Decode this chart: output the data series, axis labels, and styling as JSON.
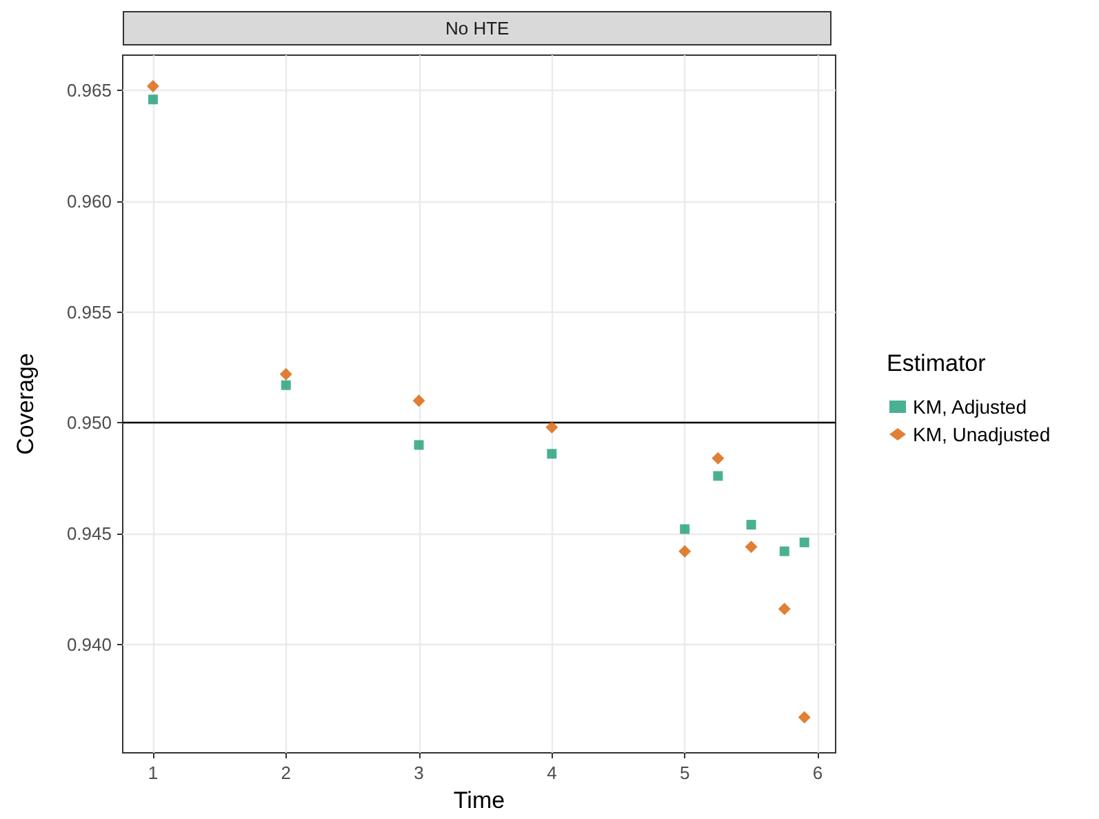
{
  "chart_data": {
    "type": "scatter",
    "title": "No HTE",
    "xlabel": "Time",
    "ylabel": "Coverage",
    "legend_title": "Estimator",
    "legend": "right",
    "grid": true,
    "xlim": [
      0.772,
      6.135
    ],
    "xticks": [
      1,
      2,
      3,
      4,
      5,
      6
    ],
    "ylim": [
      0.9351,
      0.9666
    ],
    "yticks": [
      {
        "value": 0.94,
        "label": "0.940"
      },
      0.945,
      {
        "value": 0.95,
        "label": "0.950"
      },
      0.955,
      {
        "value": 0.96,
        "label": "0.960"
      },
      0.965
    ],
    "ref_lines": [
      {
        "axis": "y",
        "value": 0.95,
        "color": "#000000"
      }
    ],
    "series": [
      {
        "name": "KM, Adjusted",
        "color": "#1b9e77",
        "marker": "square",
        "x": [
          1,
          2,
          3,
          4,
          5,
          5.25,
          5.5,
          5.75,
          5.9
        ],
        "values": [
          0.9646,
          0.9517,
          0.949,
          0.9486,
          0.9452,
          0.9476,
          0.9454,
          0.9442,
          0.9446
        ]
      },
      {
        "name": "KM, Unadjusted",
        "color": "#d95f02",
        "marker": "diamond",
        "x": [
          1,
          2,
          3,
          4,
          5,
          5.25,
          5.5,
          5.75,
          5.9
        ],
        "values": [
          0.9652,
          0.9522,
          0.951,
          0.9498,
          0.9442,
          0.9484,
          0.9444,
          0.9416,
          0.9367
        ]
      }
    ]
  }
}
